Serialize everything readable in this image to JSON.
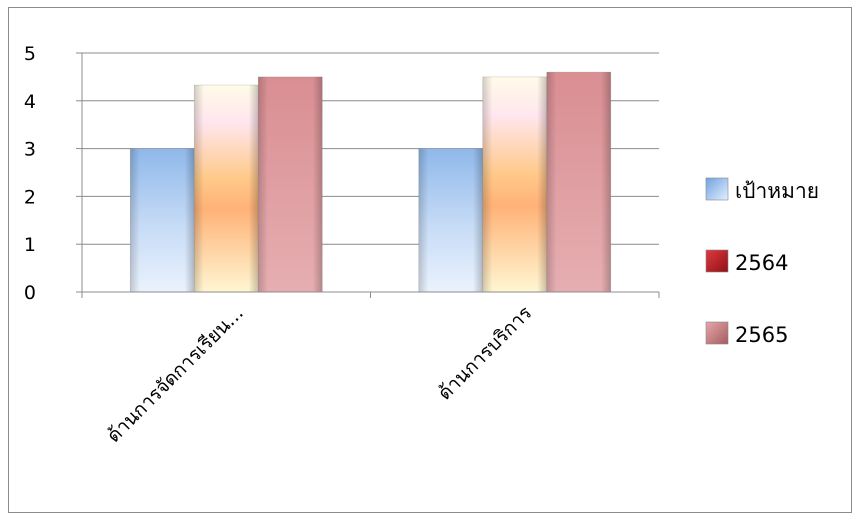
{
  "chart_data": {
    "type": "bar",
    "categories": [
      "ด้านการจัดการเรียน...",
      "ด้านการบริการ"
    ],
    "series": [
      {
        "name": "เป้าหมาย",
        "values": [
          3,
          3
        ],
        "color": "#9cc3ee"
      },
      {
        "name": "2564",
        "values": [
          4.33,
          4.5
        ],
        "color": "#c0272d"
      },
      {
        "name": "2565",
        "values": [
          4.5,
          4.6
        ],
        "color": "#c9898b"
      }
    ],
    "y_ticks": [
      "0",
      "1",
      "2",
      "3",
      "4",
      "5"
    ],
    "ylim": [
      0,
      5
    ],
    "grid": true,
    "legend_position": "right"
  }
}
